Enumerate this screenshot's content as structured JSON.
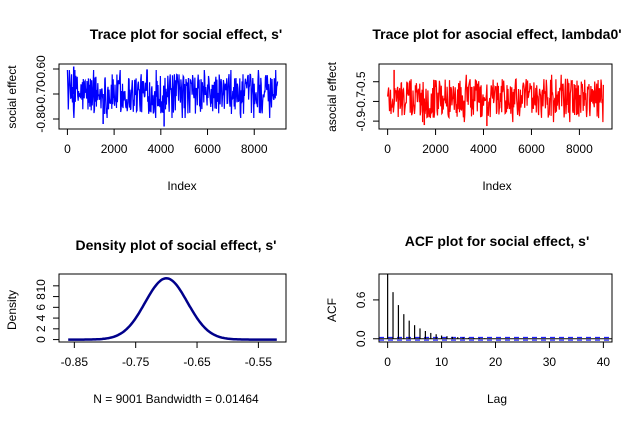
{
  "chart_data": [
    {
      "type": "line",
      "title": "Trace plot for social effect, s'",
      "xlabel": "Index",
      "ylabel": "social effect",
      "color": "#0000ff",
      "xlim": [
        -360,
        9360
      ],
      "ylim": [
        -0.84,
        -0.58
      ],
      "xticks": [
        "0",
        "2000",
        "4000",
        "6000",
        "8000"
      ],
      "yticks": [
        "-0.80",
        "-0.70",
        "-0.60"
      ],
      "n": 9001,
      "mean": -0.7,
      "typical_range": [
        -0.79,
        -0.63
      ],
      "observed_min": -0.83,
      "observed_max": -0.59
    },
    {
      "type": "line",
      "title": "Trace plot for asocial effect, lambda0'",
      "xlabel": "Index",
      "ylabel": "asocial effect",
      "color": "#ff0000",
      "xlim": [
        -360,
        9360
      ],
      "ylim": [
        -0.98,
        -0.32
      ],
      "xticks": [
        "0",
        "2000",
        "4000",
        "6000",
        "8000"
      ],
      "yticks": [
        "-0.9",
        "-0.7",
        "-0.5"
      ],
      "n": 9001,
      "mean": -0.67,
      "typical_range": [
        -0.85,
        -0.45
      ],
      "observed_min": -0.95,
      "observed_max": -0.38
    },
    {
      "type": "line",
      "title": "Density plot of social effect, s'",
      "xlabel": "N = 9001   Bandwidth = 0.01464",
      "ylabel": "Density",
      "color": "#00008b",
      "xlim": [
        -0.875,
        -0.505
      ],
      "ylim": [
        -0.45,
        12.2
      ],
      "xticks": [
        "-0.85",
        "-0.75",
        "-0.65",
        "-0.55"
      ],
      "yticks": [
        "0",
        "2",
        "4",
        "6",
        "8",
        "10"
      ],
      "x_range": [
        -0.86,
        -0.52
      ],
      "mean": -0.7,
      "sd": 0.0345,
      "peak": 11.4
    },
    {
      "type": "bar",
      "title": "ACF plot for social effect, s'",
      "xlabel": "Lag",
      "ylabel": "ACF",
      "xlim": [
        -1.6,
        41.6
      ],
      "ylim": [
        -0.05,
        1.0
      ],
      "xticks": [
        "0",
        "10",
        "20",
        "30",
        "40"
      ],
      "yticks": [
        "0.0",
        "0.6"
      ],
      "x": [
        0,
        1,
        2,
        3,
        4,
        5,
        6,
        7,
        8,
        9,
        10,
        11,
        12,
        13,
        14,
        15,
        16,
        17,
        18,
        19,
        20,
        21,
        22,
        23,
        24,
        25,
        26,
        27,
        28,
        29,
        30,
        31,
        32,
        33,
        34,
        35,
        36,
        37,
        38,
        39,
        40
      ],
      "values": [
        1.0,
        0.72,
        0.52,
        0.38,
        0.28,
        0.21,
        0.16,
        0.12,
        0.09,
        0.07,
        0.05,
        0.04,
        0.03,
        0.025,
        0.02,
        0.015,
        0.01,
        0.01,
        0.008,
        0.005,
        0.004,
        0.003,
        0.002,
        0.002,
        0.001,
        0.001,
        0.0,
        0.0,
        0.0,
        0.0,
        0.0,
        0.0,
        0.0,
        0.0,
        0.0,
        0.0,
        0.0,
        0.0,
        0.0,
        0.0,
        0.0
      ],
      "ci": 0.021,
      "ci_color": "#0000ff"
    }
  ]
}
